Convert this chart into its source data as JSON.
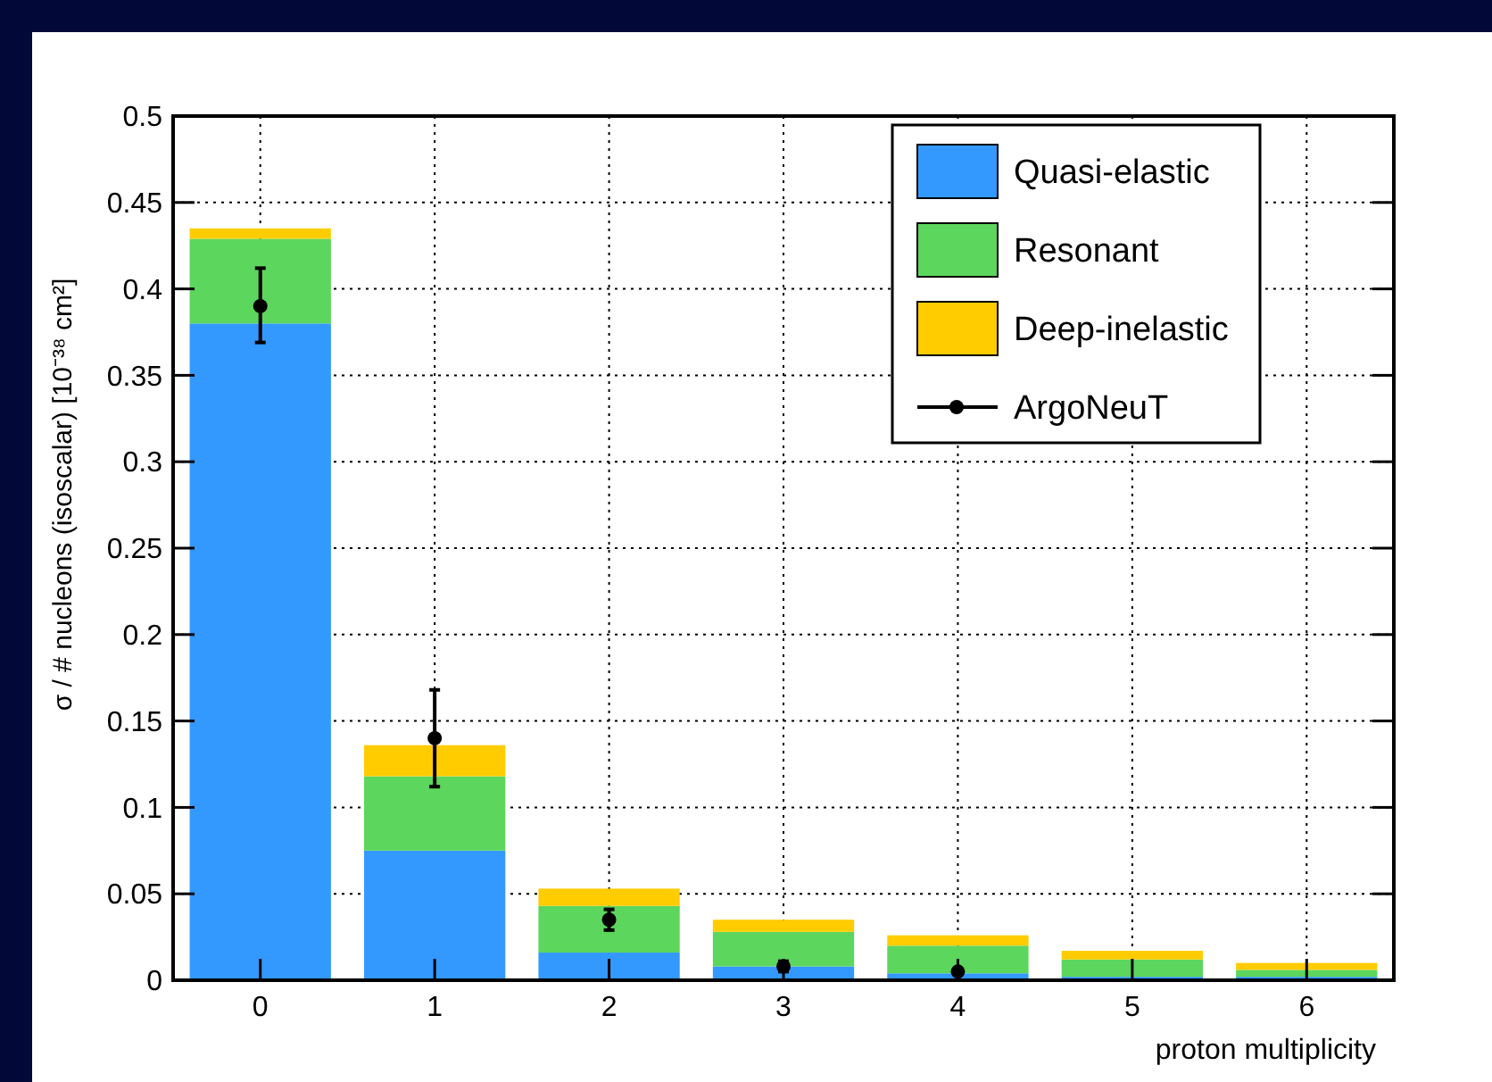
{
  "chart_data": {
    "type": "bar",
    "stacked": true,
    "xlabel": "proton multiplicity",
    "ylabel": "σ / # nucleons (isoscalar) [10⁻³⁸ cm²]",
    "categories": [
      "0",
      "1",
      "2",
      "3",
      "4",
      "5",
      "6"
    ],
    "series": [
      {
        "name": "Quasi-elastic",
        "color": "#3399ff",
        "values": [
          0.38,
          0.075,
          0.016,
          0.008,
          0.004,
          0.002,
          0.002
        ]
      },
      {
        "name": "Resonant",
        "color": "#5cd65c",
        "values": [
          0.049,
          0.043,
          0.027,
          0.02,
          0.016,
          0.01,
          0.004
        ]
      },
      {
        "name": "Deep-inelastic",
        "color": "#ffcc00",
        "values": [
          0.006,
          0.018,
          0.01,
          0.007,
          0.006,
          0.005,
          0.004
        ]
      },
      {
        "name": "ArgoNeuT",
        "type": "scatter",
        "color": "#000000",
        "x": [
          "0",
          "1",
          "2",
          "3",
          "4"
        ],
        "values": [
          0.39,
          0.14,
          0.035,
          0.008,
          0.005
        ],
        "errors": [
          [
            0.369,
            0.412
          ],
          [
            0.112,
            0.168
          ],
          [
            0.029,
            0.041
          ],
          [
            0.005,
            0.011
          ],
          [
            0.004,
            0.006
          ]
        ]
      }
    ],
    "ylim": [
      0,
      0.5
    ],
    "yticks": [
      0,
      0.05,
      0.1,
      0.15,
      0.2,
      0.25,
      0.3,
      0.35,
      0.4,
      0.45,
      0.5
    ],
    "grid": true,
    "legend": "top right",
    "marker": "circle"
  }
}
